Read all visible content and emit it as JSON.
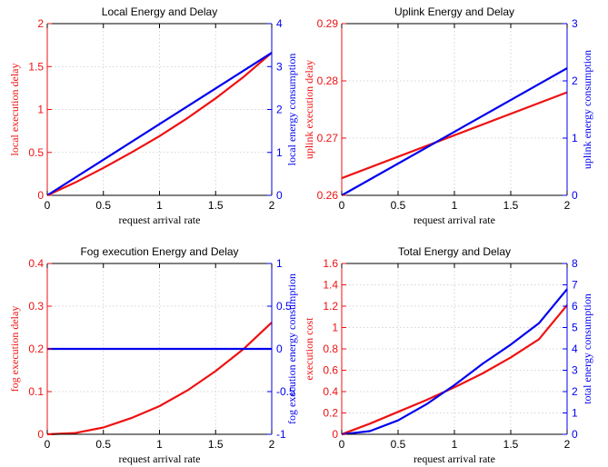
{
  "chart_data": [
    {
      "type": "line",
      "title": "Local Energy and Delay",
      "xlabel": "request arrival rate",
      "ylabel_left": "local execution delay",
      "ylabel_right": "local energy consumption",
      "left_color": "#ee1111",
      "right_color": "#0000ee",
      "xlim": [
        0,
        2
      ],
      "xticks": [
        0,
        0.5,
        1,
        1.5,
        2
      ],
      "xtick_labels": [
        "0",
        "0.5",
        "1",
        "1.5",
        "2"
      ],
      "ylim_left": [
        0,
        2
      ],
      "yticks_left": [
        0,
        0.5,
        1,
        1.5,
        2
      ],
      "ytick_labels_left": [
        "0",
        "0.5",
        "1",
        "1.5",
        "2"
      ],
      "ylim_right": [
        0,
        4
      ],
      "yticks_right": [
        0,
        1,
        2,
        3,
        4
      ],
      "ytick_labels_right": [
        "0",
        "1",
        "2",
        "3",
        "4"
      ],
      "grid": true,
      "series": [
        {
          "axis": "left",
          "color": "#ee1111",
          "x": [
            0,
            0.25,
            0.5,
            0.75,
            1,
            1.25,
            1.5,
            1.75,
            2
          ],
          "y": [
            0,
            0.15,
            0.32,
            0.5,
            0.69,
            0.9,
            1.13,
            1.38,
            1.66
          ]
        },
        {
          "axis": "right",
          "color": "#0000ee",
          "x": [
            0,
            0.5,
            1,
            1.5,
            2
          ],
          "y": [
            0,
            0.83,
            1.66,
            2.49,
            3.32
          ]
        }
      ]
    },
    {
      "type": "line",
      "title": "Uplink Energy and Delay",
      "xlabel": "request arrival rate",
      "ylabel_left": "uplink execution delay",
      "ylabel_right": "uplink energy consumption",
      "left_color": "#ee1111",
      "right_color": "#0000ee",
      "xlim": [
        0,
        2
      ],
      "xticks": [
        0,
        0.5,
        1,
        1.5,
        2
      ],
      "xtick_labels": [
        "0",
        "0.5",
        "1",
        "1.5",
        "2"
      ],
      "ylim_left": [
        0.26,
        0.29
      ],
      "yticks_left": [
        0.26,
        0.27,
        0.28,
        0.29
      ],
      "ytick_labels_left": [
        "0.26",
        "0.27",
        "0.28",
        "0.29"
      ],
      "ylim_right": [
        0,
        3
      ],
      "yticks_right": [
        0,
        1,
        2,
        3
      ],
      "ytick_labels_right": [
        "0",
        "1",
        "2",
        "3"
      ],
      "grid": true,
      "series": [
        {
          "axis": "left",
          "color": "#ee1111",
          "x": [
            0,
            2
          ],
          "y": [
            0.263,
            0.278
          ]
        },
        {
          "axis": "right",
          "color": "#0000ee",
          "x": [
            0,
            2
          ],
          "y": [
            0,
            2.22
          ]
        }
      ]
    },
    {
      "type": "line",
      "title": "Fog execution Energy and Delay",
      "xlabel": "request arrival rate",
      "ylabel_left": "fog execution delay",
      "ylabel_right": "fog execution energy consumption",
      "left_color": "#ee1111",
      "right_color": "#0000ee",
      "xlim": [
        0,
        2
      ],
      "xticks": [
        0,
        0.5,
        1,
        1.5,
        2
      ],
      "xtick_labels": [
        "0",
        "0.5",
        "1",
        "1.5",
        "2"
      ],
      "ylim_left": [
        0,
        0.4
      ],
      "yticks_left": [
        0,
        0.1,
        0.2,
        0.3,
        0.4
      ],
      "ytick_labels_left": [
        "0",
        "0.1",
        "0.2",
        "0.3",
        "0.4"
      ],
      "ylim_right": [
        -1,
        1
      ],
      "yticks_right": [
        -1,
        -0.5,
        0,
        0.5,
        1
      ],
      "ytick_labels_right": [
        "-1",
        "-0.5",
        "0",
        "0.5",
        "1"
      ],
      "grid": true,
      "series": [
        {
          "axis": "left",
          "color": "#ee1111",
          "x": [
            0,
            0.25,
            0.5,
            0.75,
            1,
            1.25,
            1.5,
            1.75,
            2
          ],
          "y": [
            0,
            0.003,
            0.016,
            0.038,
            0.066,
            0.103,
            0.148,
            0.2,
            0.262
          ]
        },
        {
          "axis": "right",
          "color": "#0000ee",
          "x": [
            0,
            2
          ],
          "y": [
            0,
            0
          ]
        }
      ]
    },
    {
      "type": "line",
      "title": "Total Energy and Delay",
      "xlabel": "request arrival rate",
      "ylabel_left": "execution cost",
      "ylabel_right": "total energy consumption",
      "left_color": "#ee1111",
      "right_color": "#0000ee",
      "xlim": [
        0,
        2
      ],
      "xticks": [
        0,
        0.5,
        1,
        1.5,
        2
      ],
      "xtick_labels": [
        "0",
        "0.5",
        "1",
        "1.5",
        "2"
      ],
      "ylim_left": [
        0,
        1.6
      ],
      "yticks_left": [
        0,
        0.2,
        0.4,
        0.6,
        0.8,
        1,
        1.2,
        1.4,
        1.6
      ],
      "ytick_labels_left": [
        "0",
        "0.2",
        "0.4",
        "0.6",
        "0.8",
        "1",
        "1.2",
        "1.4",
        "1.6"
      ],
      "ylim_right": [
        0,
        8
      ],
      "yticks_right": [
        0,
        1,
        2,
        3,
        4,
        5,
        6,
        7,
        8
      ],
      "ytick_labels_right": [
        "0",
        "1",
        "2",
        "3",
        "4",
        "5",
        "6",
        "7",
        "8"
      ],
      "grid": true,
      "series": [
        {
          "axis": "left",
          "color": "#ee1111",
          "x": [
            0,
            0.25,
            0.5,
            0.75,
            1,
            1.25,
            1.5,
            1.75,
            2
          ],
          "y": [
            0,
            0.1,
            0.21,
            0.32,
            0.44,
            0.57,
            0.72,
            0.89,
            1.21
          ]
        },
        {
          "axis": "right",
          "color": "#0000ee",
          "x": [
            0,
            0.25,
            0.5,
            0.75,
            1,
            1.25,
            1.5,
            1.75,
            2
          ],
          "y": [
            0,
            0.15,
            0.65,
            1.4,
            2.3,
            3.3,
            4.2,
            5.2,
            6.8
          ]
        }
      ]
    }
  ]
}
